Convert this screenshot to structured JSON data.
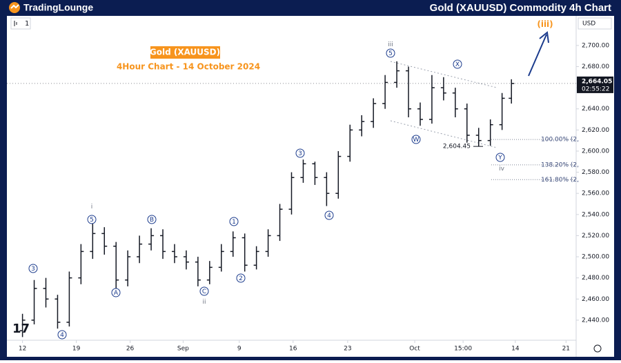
{
  "header": {
    "logo": "TradingLounge",
    "title": "Gold (XAUUSD) Commodity 4h Chart"
  },
  "chart_data": {
    "type": "ohlc",
    "title": "Gold (XAUUSD)",
    "subtitle": "4Hour Chart - 14 October 2024",
    "interval": "1",
    "currency": "USD",
    "color": "#131722",
    "x": [
      0,
      1.5,
      3,
      4.5,
      6,
      7.5,
      9,
      10.5,
      12,
      13.5,
      15,
      16.5,
      18,
      19.5,
      21,
      22.5,
      24,
      25.5,
      27,
      28.5,
      30,
      31.5,
      33,
      34.5,
      36,
      37.5,
      39,
      40.5,
      42,
      43.5,
      45,
      46.5,
      48,
      49.5,
      51,
      52.5,
      54,
      55.5,
      57,
      58.5,
      60,
      61.5,
      62.7
    ],
    "open": [
      2430,
      2440,
      2470,
      2460,
      2438,
      2480,
      2505,
      2522,
      2510,
      2478,
      2500,
      2512,
      2520,
      2505,
      2500,
      2495,
      2478,
      2490,
      2505,
      2518,
      2492,
      2505,
      2520,
      2545,
      2575,
      2588,
      2575,
      2560,
      2595,
      2620,
      2628,
      2645,
      2665,
      2676,
      2640,
      2630,
      2660,
      2655,
      2640,
      2615,
      2610,
      2625,
      2650
    ],
    "high": [
      2446,
      2478,
      2480,
      2464,
      2486,
      2512,
      2532,
      2528,
      2514,
      2506,
      2520,
      2527,
      2526,
      2512,
      2506,
      2500,
      2496,
      2512,
      2524,
      2522,
      2510,
      2526,
      2550,
      2580,
      2592,
      2590,
      2580,
      2600,
      2625,
      2634,
      2650,
      2672,
      2685,
      2680,
      2646,
      2672,
      2670,
      2660,
      2645,
      2622,
      2630,
      2655,
      2668
    ],
    "low": [
      2424,
      2436,
      2452,
      2432,
      2434,
      2474,
      2498,
      2502,
      2470,
      2472,
      2494,
      2506,
      2498,
      2494,
      2488,
      2472,
      2474,
      2486,
      2500,
      2486,
      2488,
      2500,
      2515,
      2540,
      2570,
      2568,
      2548,
      2555,
      2590,
      2614,
      2622,
      2640,
      2660,
      2632,
      2624,
      2626,
      2648,
      2632,
      2608,
      2604.45,
      2605,
      2620,
      2645
    ],
    "close": [
      2440,
      2470,
      2460,
      2438,
      2480,
      2505,
      2522,
      2510,
      2478,
      2500,
      2512,
      2520,
      2505,
      2500,
      2495,
      2478,
      2490,
      2505,
      2518,
      2492,
      2505,
      2520,
      2545,
      2575,
      2588,
      2575,
      2560,
      2595,
      2620,
      2628,
      2645,
      2665,
      2676,
      2640,
      2630,
      2660,
      2655,
      2640,
      2615,
      2610,
      2625,
      2650,
      2664
    ],
    "xlim": [
      -2,
      71
    ],
    "xticks": [
      {
        "value": 0,
        "label": "12"
      },
      {
        "value": 6.9,
        "label": "19"
      },
      {
        "value": 13.8,
        "label": "26"
      },
      {
        "value": 20.6,
        "label": "Sep"
      },
      {
        "value": 27.8,
        "label": "9"
      },
      {
        "value": 34.7,
        "label": "16"
      },
      {
        "value": 41.7,
        "label": "23"
      },
      {
        "value": 50.3,
        "label": "Oct"
      },
      {
        "value": 56.5,
        "label": "15:00"
      },
      {
        "value": 63.2,
        "label": "14"
      },
      {
        "value": 69.7,
        "label": "21"
      }
    ],
    "ylim": [
      2421,
      2728
    ],
    "yticks": [
      {
        "value": 2440,
        "label": "2,440.00"
      },
      {
        "value": 2460,
        "label": "2,460.00"
      },
      {
        "value": 2480,
        "label": "2,480.00"
      },
      {
        "value": 2500,
        "label": "2,500.00"
      },
      {
        "value": 2520,
        "label": "2,520.00"
      },
      {
        "value": 2540,
        "label": "2,540.00"
      },
      {
        "value": 2560,
        "label": "2,560.00"
      },
      {
        "value": 2580,
        "label": "2,580.00"
      },
      {
        "value": 2600,
        "label": "2,600.00"
      },
      {
        "value": 2620,
        "label": "2,620.00"
      },
      {
        "value": 2640,
        "label": "2,640.00"
      },
      {
        "value": 2660,
        "label": "2,660.00"
      },
      {
        "value": 2680,
        "label": "2,680.00"
      },
      {
        "value": 2700,
        "label": "2,700.00"
      }
    ],
    "last_price": {
      "value": 2664.05,
      "label": "2,664.05"
    },
    "countdown": "02:55:22",
    "fib_levels": [
      {
        "value": 2611,
        "label": "100.00% (2,"
      },
      {
        "value": 2587,
        "label": "138.20% (2,"
      },
      {
        "value": 2573,
        "label": "161.80% (2,"
      }
    ],
    "low_marker": {
      "value": 2604.45,
      "label": "2,604.45"
    },
    "wave_labels": [
      "3",
      "4",
      "i",
      "5",
      "A",
      "B",
      "C",
      "ii",
      "1",
      "2",
      "3",
      "4",
      "iii",
      "5",
      "X",
      "W",
      "Y",
      "iv",
      "(iii)"
    ]
  }
}
